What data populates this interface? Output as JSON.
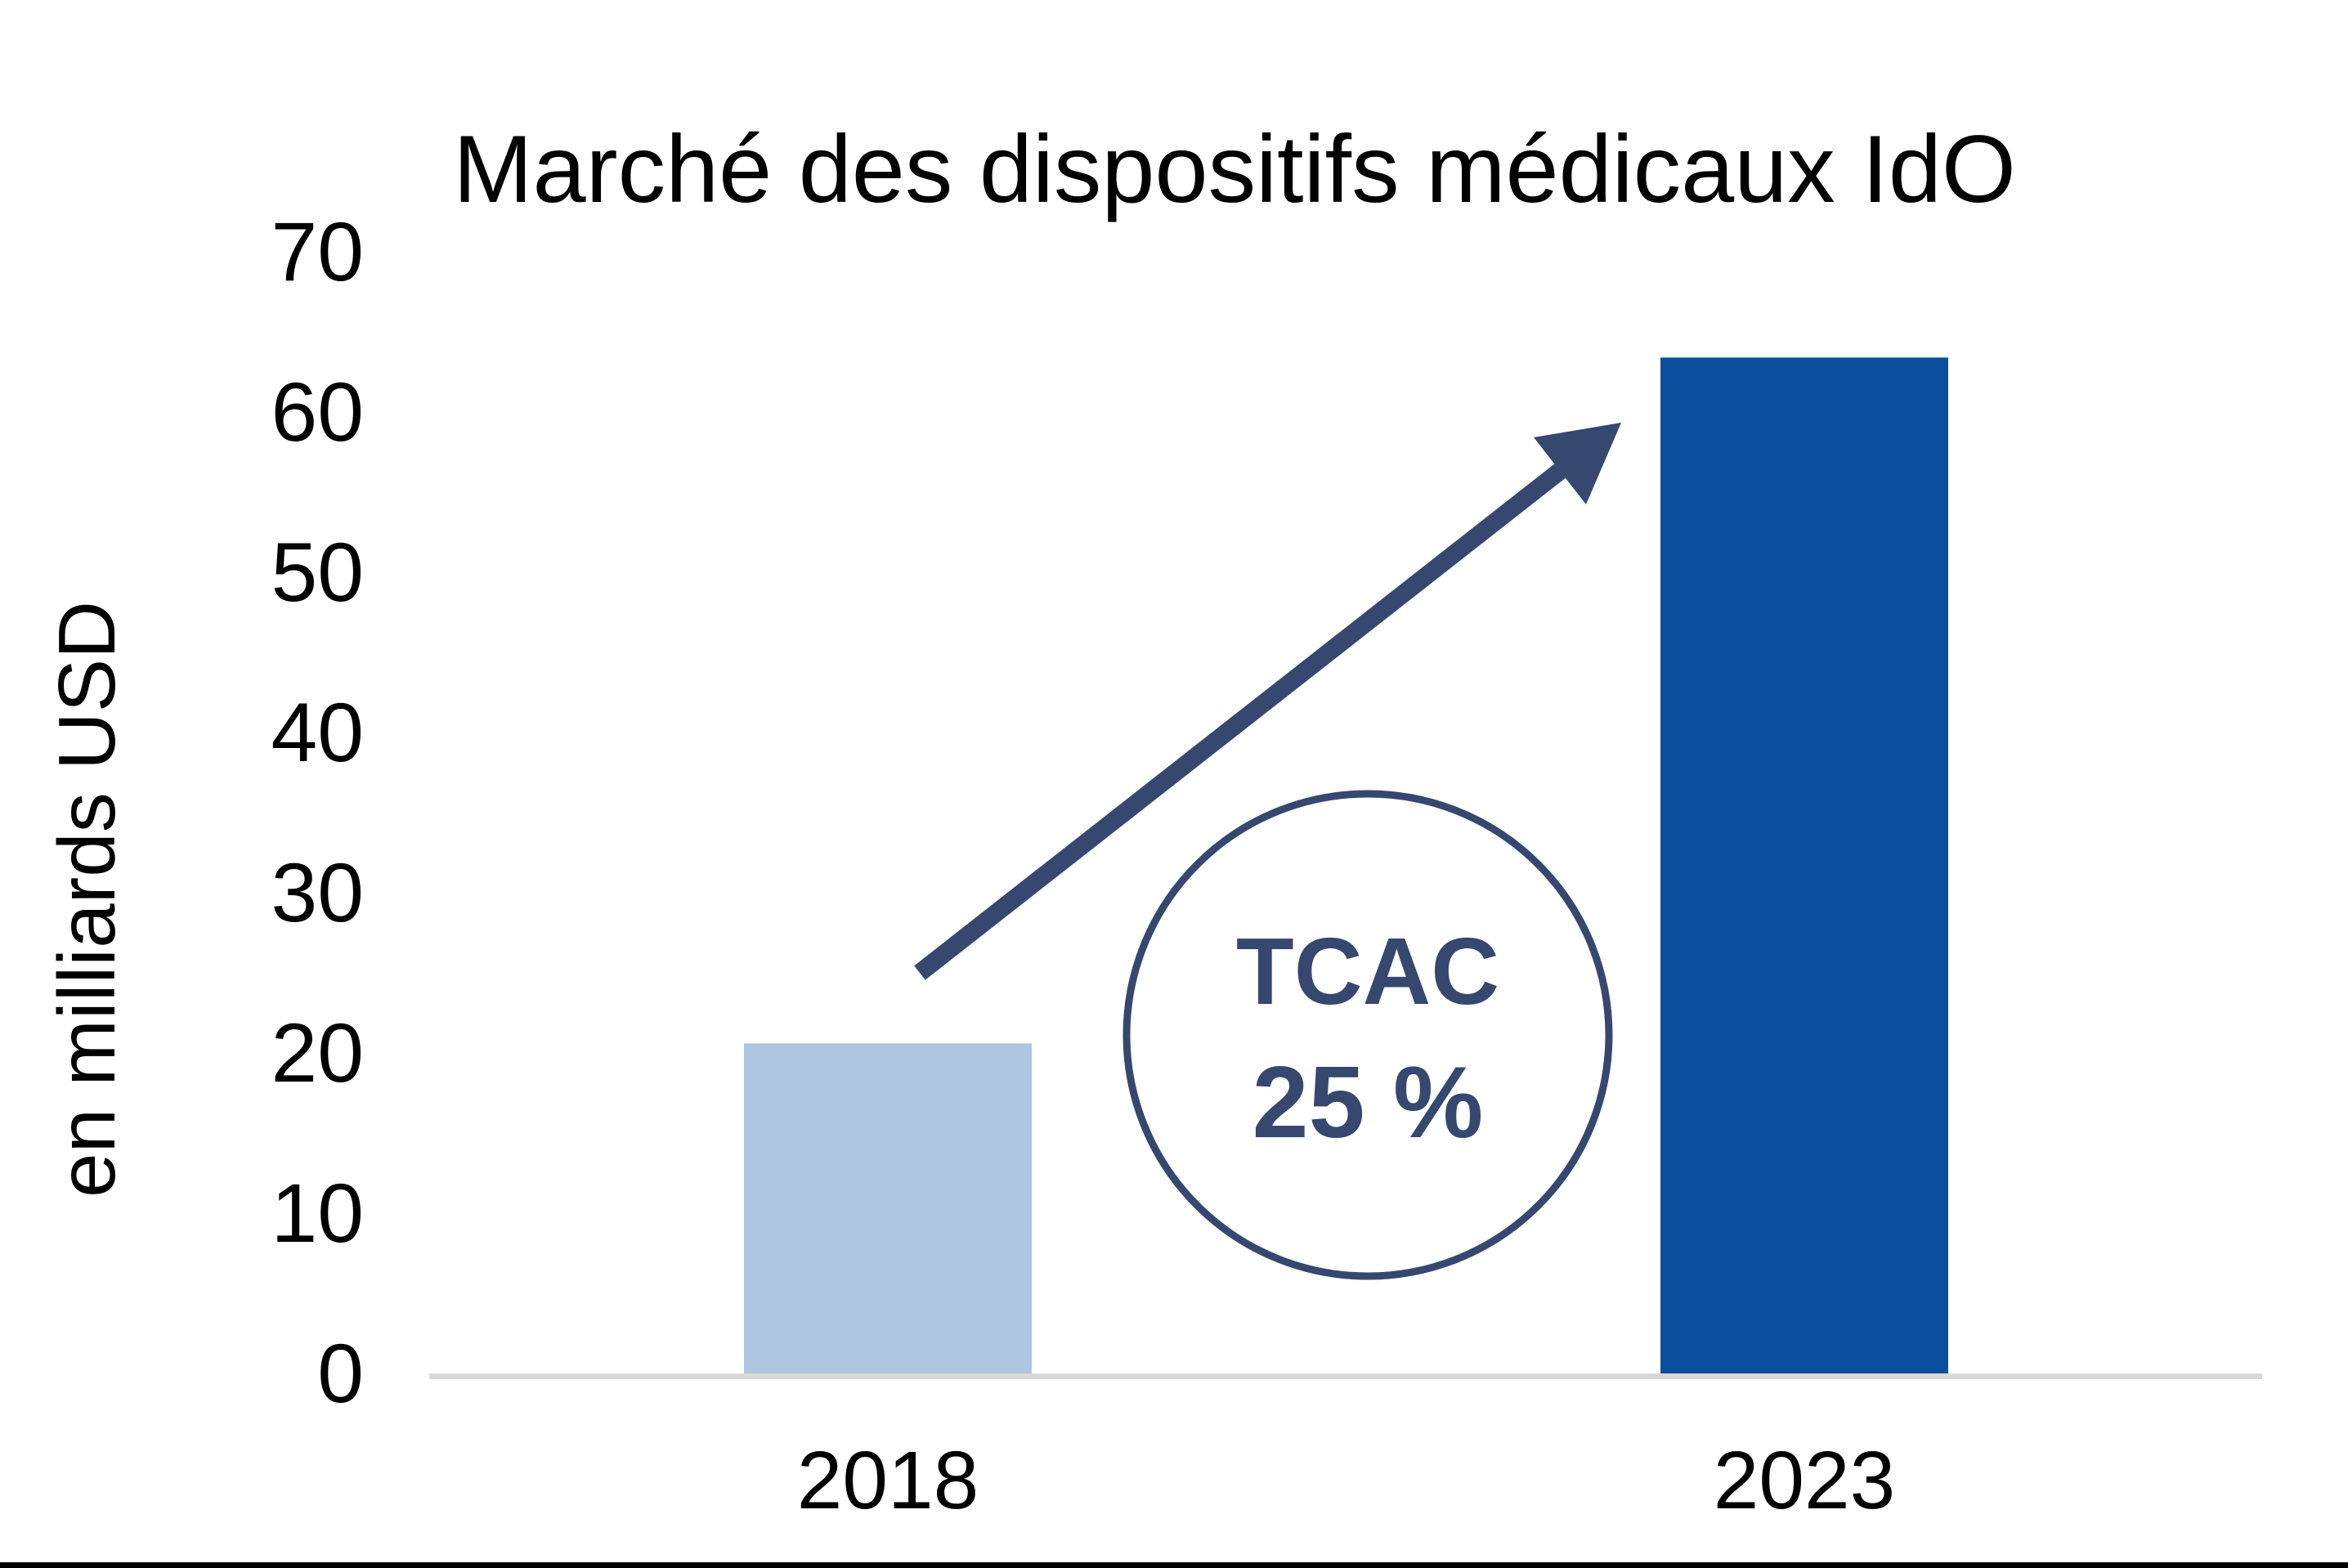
{
  "chart_data": {
    "type": "bar",
    "title": "Marché des dispositifs médicaux IdO",
    "ylabel": "en milliards USD",
    "xlabel": "",
    "categories": [
      "2018",
      "2023"
    ],
    "values": [
      20.6,
      63.4
    ],
    "series": [
      {
        "name": "Marché des dispositifs médicaux IdO",
        "values": [
          20.6,
          63.4
        ]
      }
    ],
    "bar_colors": [
      "#AFC6E1",
      "#0B4E9E"
    ],
    "ylim": [
      0,
      70
    ],
    "yticks": [
      0,
      10,
      20,
      30,
      40,
      50,
      60,
      70
    ],
    "grid": false,
    "legend_position": "none",
    "annotation": {
      "label": "TCAC",
      "value": "25 %",
      "shape": "circle"
    },
    "trend_arrow": {
      "direction": "up-right",
      "from_category": "2018",
      "to_category": "2023"
    }
  },
  "colors": {
    "text": "#000000",
    "accent_navy": "#36486F",
    "axis_line": "#D9D9D9",
    "bar_2018": "#AFC6E1",
    "bar_2023": "#0B4E9E",
    "background": "#FFFFFF"
  }
}
